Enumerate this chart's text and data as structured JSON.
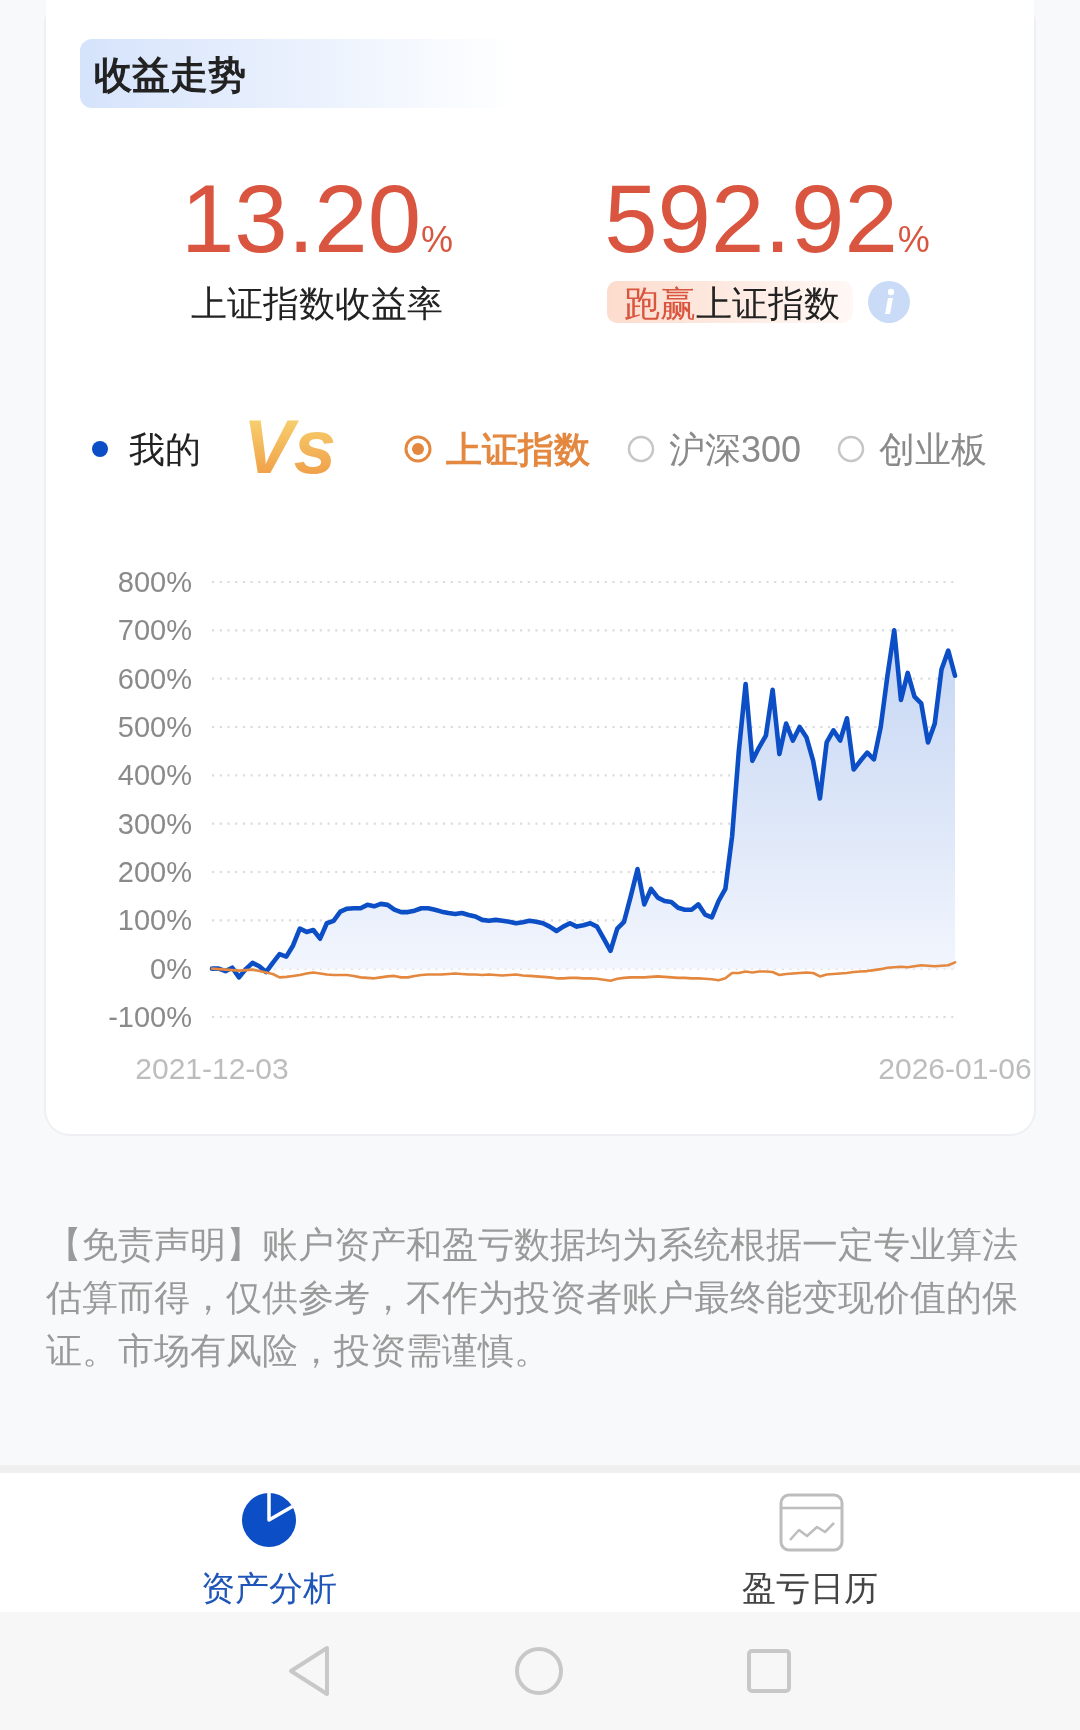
{
  "chart_data": {
    "type": "line",
    "title": "收益走势",
    "categories": [
      "2021-12-03",
      null,
      null,
      null,
      null,
      null,
      null,
      null,
      null,
      null,
      null,
      null,
      null,
      null,
      null,
      null,
      null,
      null,
      null,
      null,
      null,
      null,
      null,
      null,
      null,
      null,
      null,
      null,
      null,
      null,
      null,
      null,
      null,
      null,
      null,
      null,
      null,
      null,
      null,
      null,
      null,
      null,
      null,
      null,
      null,
      null,
      null,
      null,
      null,
      null,
      null,
      null,
      null,
      null,
      null,
      null,
      null,
      null,
      null,
      null,
      null,
      null,
      null,
      null,
      null,
      null,
      null,
      null,
      null,
      null,
      null,
      null,
      null,
      null,
      null,
      null,
      null,
      null,
      null,
      null,
      null,
      null,
      null,
      null,
      null,
      null,
      null,
      null,
      null,
      null,
      null,
      null,
      null,
      null,
      null,
      null,
      null,
      null,
      null,
      null,
      null,
      null,
      null,
      null,
      null,
      null,
      null,
      null,
      null,
      null,
      "2026-01-06"
    ],
    "ylim": [
      -100,
      800
    ],
    "yticks": [
      {
        "value": -100,
        "label": "-100%"
      },
      {
        "value": 0,
        "label": "0%"
      },
      {
        "value": 100,
        "label": "100%"
      },
      {
        "value": 200,
        "label": "200%"
      },
      {
        "value": 300,
        "label": "300%"
      },
      {
        "value": 400,
        "label": "400%"
      },
      {
        "value": 500,
        "label": "500%"
      },
      {
        "value": 600,
        "label": "600%"
      },
      {
        "value": 700,
        "label": "700%"
      },
      {
        "value": 800,
        "label": "800%"
      }
    ],
    "grid": "y",
    "legend": "top",
    "series": [
      {
        "name": "我的",
        "type": "area",
        "color": "#0b4ec5",
        "values": [
          0,
          0,
          -5,
          2,
          -18,
          -1,
          12,
          5,
          -7,
          12,
          30,
          25,
          48,
          83,
          76,
          80,
          62,
          94,
          99,
          118,
          124,
          125,
          125,
          132,
          129,
          134,
          132,
          122,
          117,
          117,
          120,
          125,
          125,
          122,
          118,
          115,
          113,
          115,
          111,
          108,
          101,
          99,
          101,
          99,
          97,
          94,
          96,
          99,
          97,
          94,
          87,
          78,
          87,
          94,
          87,
          90,
          94,
          87,
          62,
          37,
          83,
          97,
          150,
          206,
          133,
          165,
          147,
          140,
          138,
          126,
          122,
          122,
          133,
          112,
          106,
          140,
          165,
          274,
          451,
          589,
          430,
          458,
          482,
          577,
          444,
          507,
          472,
          500,
          479,
          430,
          352,
          468,
          493,
          472,
          518,
          412,
          430,
          447,
          433,
          500,
          606,
          700,
          556,
          612,
          563,
          549,
          468,
          507,
          619,
          658,
          606
        ]
      },
      {
        "name": "上证指数",
        "color": "#e4873f",
        "values": [
          0,
          -1,
          -2,
          -3,
          -4,
          -3,
          -2,
          -5,
          -8,
          -11,
          -18,
          -17,
          -15,
          -13,
          -10,
          -8,
          -10,
          -12,
          -13,
          -13,
          -13,
          -15,
          -18,
          -19,
          -20,
          -18,
          -16,
          -15,
          -18,
          -18,
          -15,
          -13,
          -12,
          -12,
          -12,
          -11,
          -10,
          -11,
          -12,
          -12,
          -13,
          -12,
          -13,
          -14,
          -13,
          -12,
          -14,
          -15,
          -16,
          -17,
          -18,
          -20,
          -20,
          -19,
          -19,
          -20,
          -20,
          -21,
          -23,
          -25,
          -21,
          -19,
          -18,
          -18,
          -18,
          -17,
          -16,
          -17,
          -18,
          -19,
          -19,
          -20,
          -20,
          -21,
          -22,
          -24,
          -20,
          -9,
          -9,
          -6,
          -8,
          -6,
          -6,
          -7,
          -13,
          -11,
          -10,
          -9,
          -8,
          -9,
          -16,
          -12,
          -11,
          -10,
          -9,
          -7,
          -6,
          -5,
          -3,
          -1,
          2,
          3,
          4,
          3,
          5,
          7,
          6,
          5,
          6,
          7,
          13
        ]
      }
    ],
    "annotations": [
      "13.20%",
      "上证指数收益率",
      "592.92%",
      "跑赢",
      "上证指数",
      "Vs",
      "沪深300",
      "创业板",
      "【免责声明】账户资产和盈亏数据均为系统根据一定专业算法估算而得，仅供参考，不作为投资者账户最终能变现价值的保证。市场有风险，投资需谨慎。",
      "资产分析",
      "盈亏日历"
    ]
  }
}
